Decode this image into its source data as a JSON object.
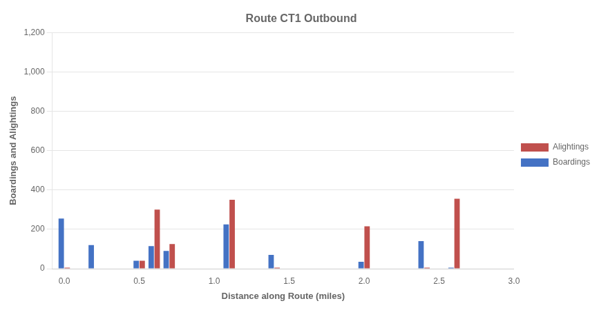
{
  "chart_data": {
    "type": "bar",
    "title": "Route CT1 Outbound",
    "x_label": "Distance along Route (miles)",
    "y_label": "Boardings and Alightings",
    "x": [
      0.0,
      0.2,
      0.5,
      0.6,
      0.7,
      1.1,
      1.4,
      2.0,
      2.4,
      2.6
    ],
    "series": [
      {
        "name": "Boardings",
        "color": "#4472C4",
        "values": [
          255,
          120,
          40,
          115,
          90,
          225,
          70,
          35,
          140,
          5
        ]
      },
      {
        "name": "Alightings",
        "color": "#C0504D",
        "values": [
          5,
          0,
          40,
          300,
          125,
          350,
          5,
          215,
          5,
          355
        ]
      }
    ],
    "xlim": [
      -0.08,
      3.0
    ],
    "xticks": [
      {
        "value": 0.0,
        "label": "0.0"
      },
      0.5,
      {
        "value": 1.0,
        "label": "1.0"
      },
      1.5,
      {
        "value": 2.0,
        "label": "2.0"
      },
      2.5,
      {
        "value": 3.0,
        "label": "3.0"
      }
    ],
    "ylim": [
      0,
      1200
    ],
    "yticks": [
      0,
      200,
      400,
      600,
      800,
      {
        "value": 1000,
        "label": "1,000"
      },
      {
        "value": 1200,
        "label": "1,200"
      }
    ],
    "grid": "y",
    "legend": "right"
  }
}
